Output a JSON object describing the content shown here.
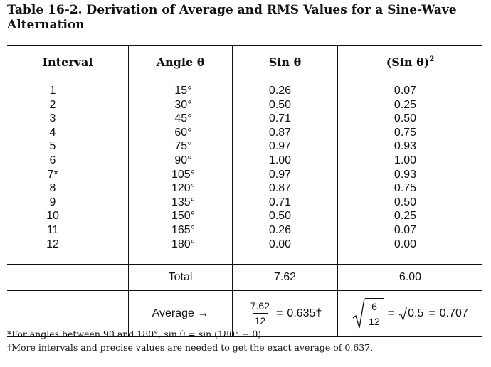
{
  "caption": {
    "line1": "Table 16-2. Derivation of Average and RMS Values for a Sine-Wave",
    "line2": "Alternation"
  },
  "headers": {
    "interval": "Interval",
    "angle": "Angle θ",
    "sin": "Sin θ",
    "sin_sq_base": "(Sin θ)",
    "sin_sq_exp": "2"
  },
  "rows": {
    "interval": [
      "1",
      "2",
      "3",
      "4",
      "5",
      "6",
      "7*",
      "8",
      "9",
      "10",
      "11",
      "12"
    ],
    "angle": [
      "15°",
      "30°",
      "45°",
      "60°",
      "75°",
      "90°",
      "105°",
      "120°",
      "135°",
      "150°",
      "165°",
      "180°"
    ],
    "sin": [
      "0.26",
      "0.50",
      "0.71",
      "0.87",
      "0.97",
      "1.00",
      "0.97",
      "0.87",
      "0.71",
      "0.50",
      "0.26",
      "0.00"
    ],
    "sin_sq": [
      "0.07",
      "0.25",
      "0.50",
      "0.75",
      "0.93",
      "1.00",
      "0.93",
      "0.75",
      "0.50",
      "0.25",
      "0.07",
      "0.00"
    ]
  },
  "total": {
    "label": "Total",
    "sin": "7.62",
    "sin_sq": "6.00"
  },
  "average": {
    "label": "Average →",
    "sin_num": "7.62",
    "sin_den": "12",
    "sin_eq": "=",
    "sin_result": "0.635†",
    "rms_num": "6",
    "rms_den": "12",
    "rms_eq1": "=",
    "rms_inner": "0.5",
    "rms_eq2": "=",
    "rms_result": "0.707"
  },
  "notes": {
    "note1": "*For angles between 90 and 180°, sin θ = sin (180° − θ).",
    "note2": "†More intervals and precise values are needed to get the exact average of 0.637."
  }
}
